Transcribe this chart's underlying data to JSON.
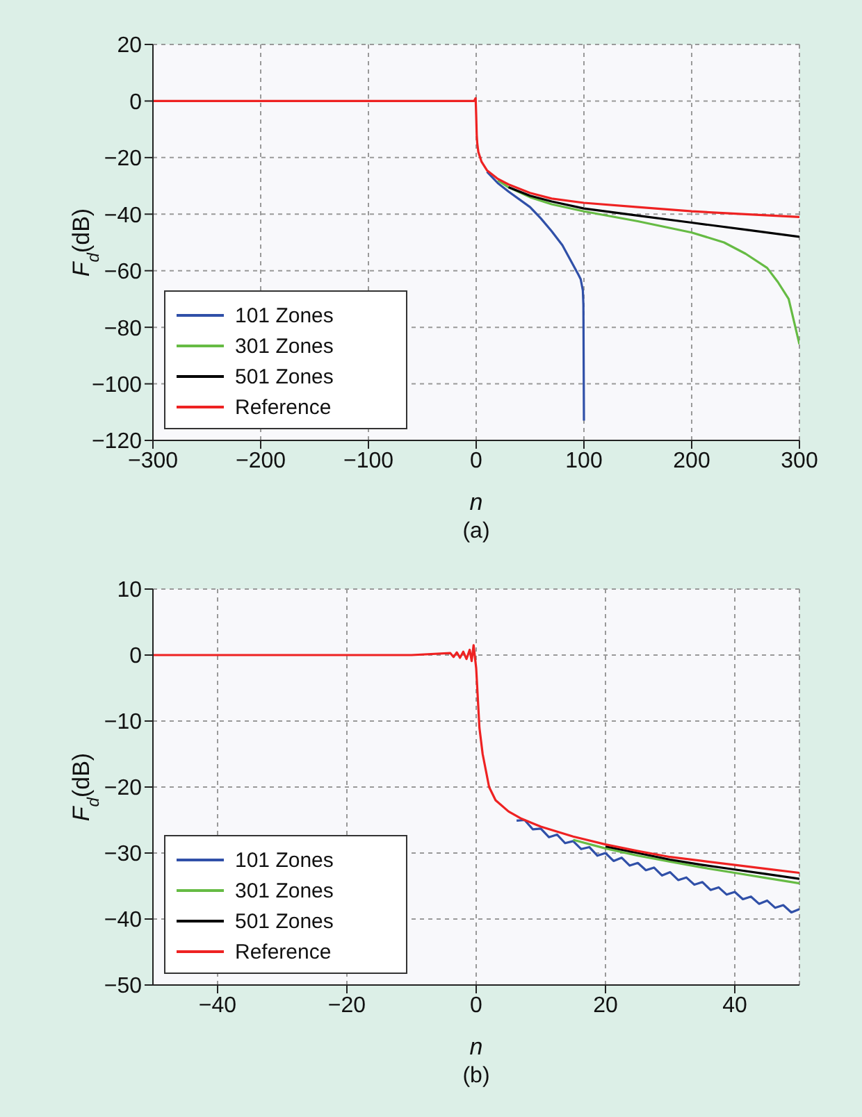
{
  "chart_data": [
    {
      "type": "line",
      "xlabel": "n",
      "ylabel": "F$_{d}$(dB)",
      "annotations": [
        "(a)"
      ],
      "xlim": [
        -300,
        300
      ],
      "ylim": [
        -120,
        20
      ],
      "xticks": [
        {
          "value": -300,
          "label": "−300"
        },
        {
          "value": -200,
          "label": "−200"
        },
        {
          "value": -100,
          "label": "−100"
        },
        0,
        100,
        200,
        300
      ],
      "yticks": [
        {
          "value": -120,
          "label": "−120"
        },
        {
          "value": -100,
          "label": "−100"
        },
        {
          "value": -80,
          "label": "−80"
        },
        {
          "value": -60,
          "label": "−60"
        },
        {
          "value": -40,
          "label": "−40"
        },
        {
          "value": -20,
          "label": "−20"
        },
        0,
        20
      ],
      "grid": true,
      "legend": "bottom left",
      "line_style": "solid",
      "marker": "none",
      "series": [
        {
          "name": "101 Zones",
          "color": "#3050a8",
          "x": [
            10,
            20,
            30,
            50,
            60,
            70,
            80,
            90,
            95,
            97,
            99,
            99.5,
            100
          ],
          "values": [
            -25,
            -29,
            -32,
            -37.5,
            -41.5,
            -46,
            -51,
            -58,
            -61.5,
            -63,
            -67,
            -72,
            -113
          ]
        },
        {
          "name": "301 Zones",
          "color": "#66bb44",
          "x": [
            20,
            30,
            50,
            70,
            100,
            150,
            200,
            230,
            250,
            270,
            280,
            290,
            300
          ],
          "values": [
            -28,
            -30.5,
            -34,
            -36.5,
            -39,
            -42.5,
            -46.5,
            -50,
            -54,
            -59,
            -64,
            -70,
            -86
          ]
        },
        {
          "name": "501 Zones",
          "color": "#000000",
          "x": [
            30,
            50,
            70,
            100,
            150,
            200,
            250,
            300
          ],
          "values": [
            -30.5,
            -33.5,
            -35.5,
            -38,
            -40.5,
            -43,
            -45.5,
            -48
          ]
        },
        {
          "name": "Reference",
          "color": "#ee2222",
          "x": [
            -300,
            -100,
            -10,
            -2,
            -0.5,
            0,
            0.5,
            1,
            2,
            5,
            10,
            20,
            30,
            50,
            70,
            100,
            150,
            200,
            250,
            300
          ],
          "values": [
            0,
            0,
            0,
            0,
            1,
            -5,
            -12,
            -15,
            -18,
            -21.5,
            -24.5,
            -27.5,
            -29.5,
            -32.5,
            -34.5,
            -36,
            -37.5,
            -39,
            -40,
            -41
          ]
        }
      ]
    },
    {
      "type": "line",
      "xlabel": "n",
      "ylabel": "F$_{d}$(dB)",
      "annotations": [
        "(b)"
      ],
      "xlim": [
        -50,
        50
      ],
      "ylim": [
        -50,
        10
      ],
      "xticks": [
        {
          "value": -40,
          "label": "−40"
        },
        {
          "value": -20,
          "label": "−20"
        },
        0,
        20,
        40
      ],
      "yticks": [
        {
          "value": -50,
          "label": "−50"
        },
        {
          "value": -40,
          "label": "−40"
        },
        {
          "value": -30,
          "label": "−30"
        },
        {
          "value": -20,
          "label": "−20"
        },
        {
          "value": -10,
          "label": "−10"
        },
        0,
        10
      ],
      "grid": true,
      "legend": "bottom left",
      "line_style": "solid",
      "marker": "none",
      "series": [
        {
          "name": "101 Zones",
          "color": "#3050a8",
          "x": [
            6.25,
            7.5,
            8.75,
            10,
            11.25,
            12.5,
            13.75,
            15,
            16.25,
            17.5,
            18.75,
            20,
            21.25,
            22.5,
            23.75,
            25,
            26.25,
            27.5,
            28.75,
            30,
            31.25,
            32.5,
            33.75,
            35,
            36.25,
            37.5,
            38.75,
            40,
            41.25,
            42.5,
            43.75,
            45,
            46.25,
            47.5,
            48.75,
            50
          ],
          "values": [
            -25.1,
            -25.0,
            -26.4,
            -26.3,
            -27.6,
            -27.2,
            -28.5,
            -28.2,
            -29.4,
            -29.1,
            -30.4,
            -30.0,
            -31.2,
            -30.7,
            -31.9,
            -31.5,
            -32.6,
            -32.2,
            -33.4,
            -32.9,
            -34.1,
            -33.7,
            -34.8,
            -34.4,
            -35.6,
            -35.2,
            -36.3,
            -35.9,
            -37.0,
            -36.6,
            -37.7,
            -37.2,
            -38.3,
            -37.9,
            -39.0,
            -38.5
          ]
        },
        {
          "name": "301 Zones",
          "color": "#66bb44",
          "x": [
            15,
            20,
            25,
            30,
            35,
            40,
            45,
            50
          ],
          "values": [
            -28,
            -29.3,
            -30.4,
            -31.3,
            -32.2,
            -33,
            -33.8,
            -34.6
          ]
        },
        {
          "name": "501 Zones",
          "color": "#000000",
          "x": [
            20,
            25,
            30,
            35,
            40,
            45,
            50
          ],
          "values": [
            -29,
            -30,
            -31,
            -31.8,
            -32.5,
            -33.2,
            -33.9
          ]
        },
        {
          "name": "Reference",
          "color": "#ee2222",
          "x": [
            -50,
            -10,
            -4,
            -3.5,
            -3,
            -2.5,
            -2,
            -1.5,
            -1,
            -0.7,
            -0.4,
            0,
            0.5,
            1,
            2,
            3,
            5,
            7,
            10,
            15,
            20,
            25,
            30,
            35,
            40,
            45,
            50
          ],
          "values": [
            0,
            0,
            0.3,
            -0.3,
            0.4,
            -0.4,
            0.5,
            -0.6,
            0.8,
            -0.9,
            1.5,
            -2,
            -11,
            -15,
            -20,
            -22,
            -23.7,
            -24.8,
            -26,
            -27.5,
            -28.7,
            -29.7,
            -30.6,
            -31.2,
            -31.8,
            -32.4,
            -33
          ]
        }
      ]
    }
  ]
}
